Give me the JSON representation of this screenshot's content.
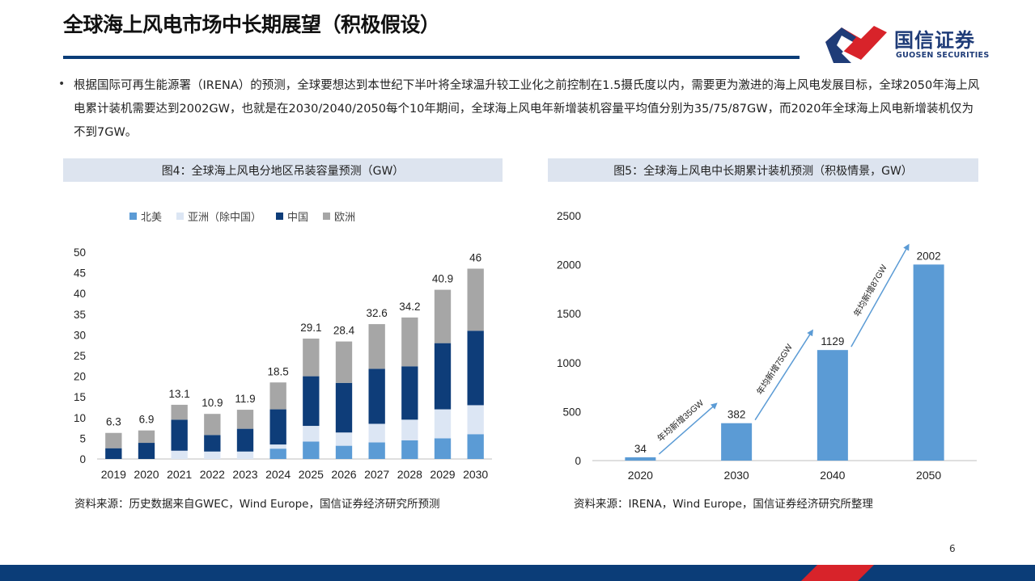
{
  "title": "全球海上风电市场中长期展望（积极假设）",
  "logo": {
    "cn": "国信证券",
    "en": "GUOSEN SECURITIES"
  },
  "bullet": "根据国际可再生能源署（IRENA）的预测，全球要想达到本世纪下半叶将全球温升较工业化之前控制在1.5摄氏度以内，需要更为激进的海上风电发展目标，全球2050年海上风电累计装机需要达到2002GW，也就是在2030/2040/2050每个10年期间，全球海上风电年新增装机容量平均值分别为35/75/87GW，而2020年全球海上风电新增装机仅为不到7GW。",
  "figures": {
    "fig4_title": "图4：全球海上风电分地区吊装容量预测（GW）",
    "fig5_title": "图5：全球海上风电中长期累计装机预测（积极情景，GW）",
    "fig4_source": "资料来源：历史数据来自GWEC，Wind Europe，国信证券经济研究所预测",
    "fig5_source": "资料来源：IRENA，Wind Europe，国信证券经济研究所整理"
  },
  "page_number": "6",
  "colors": {
    "navy": "#0b3d78",
    "north_america": "#5b9bd5",
    "asia": "#dce6f4",
    "china": "#0e3d79",
    "europe": "#a6a6a6",
    "logo_red": "#d8232a"
  },
  "chart_data": [
    {
      "type": "bar",
      "stacked": true,
      "categories": [
        "2019",
        "2020",
        "2021",
        "2022",
        "2023",
        "2024",
        "2025",
        "2026",
        "2027",
        "2028",
        "2029",
        "2030"
      ],
      "series": [
        {
          "name": "北美",
          "color": "#5b9bd5",
          "values": [
            0,
            0,
            0,
            0,
            0,
            2.5,
            4.2,
            3.2,
            4.0,
            4.5,
            5.0,
            6.0
          ]
        },
        {
          "name": "亚洲（除中国）",
          "color": "#dce6f4",
          "values": [
            0,
            0,
            2.0,
            1.8,
            1.8,
            1.0,
            3.8,
            3.2,
            4.5,
            5.0,
            7.0,
            7.0
          ]
        },
        {
          "name": "中国",
          "color": "#0e3d79",
          "values": [
            2.6,
            3.9,
            7.5,
            4.0,
            5.5,
            8.5,
            12.0,
            12.0,
            13.3,
            12.9,
            16.0,
            18.0
          ]
        },
        {
          "name": "欧洲",
          "color": "#a6a6a6",
          "values": [
            3.7,
            3.0,
            3.6,
            5.1,
            4.6,
            6.5,
            9.1,
            10.0,
            10.8,
            11.8,
            12.9,
            15.0
          ]
        }
      ],
      "totals": [
        "6.3",
        "6.9",
        "13.1",
        "10.9",
        "11.9",
        "18.5",
        "29.1",
        "28.4",
        "32.6",
        "34.2",
        "40.9",
        "46"
      ],
      "ylim": [
        0,
        50
      ],
      "yticks": [
        "0",
        "5",
        "10",
        "15",
        "20",
        "25",
        "30",
        "35",
        "40",
        "45",
        "50"
      ],
      "legend_position": "top-left",
      "grid": false
    },
    {
      "type": "bar",
      "categories": [
        "2020",
        "2030",
        "2040",
        "2050"
      ],
      "values": [
        34,
        382,
        1129,
        2002
      ],
      "value_labels": [
        "34",
        "382",
        "1129",
        "2002"
      ],
      "color": "#5b9bd5",
      "ylim": [
        0,
        2500
      ],
      "yticks": [
        "0",
        "500",
        "1000",
        "1500",
        "2000",
        "2500"
      ],
      "annotations": [
        "年均新增35GW",
        "年均新增75GW",
        "年均新增87GW"
      ],
      "grid": false
    }
  ]
}
